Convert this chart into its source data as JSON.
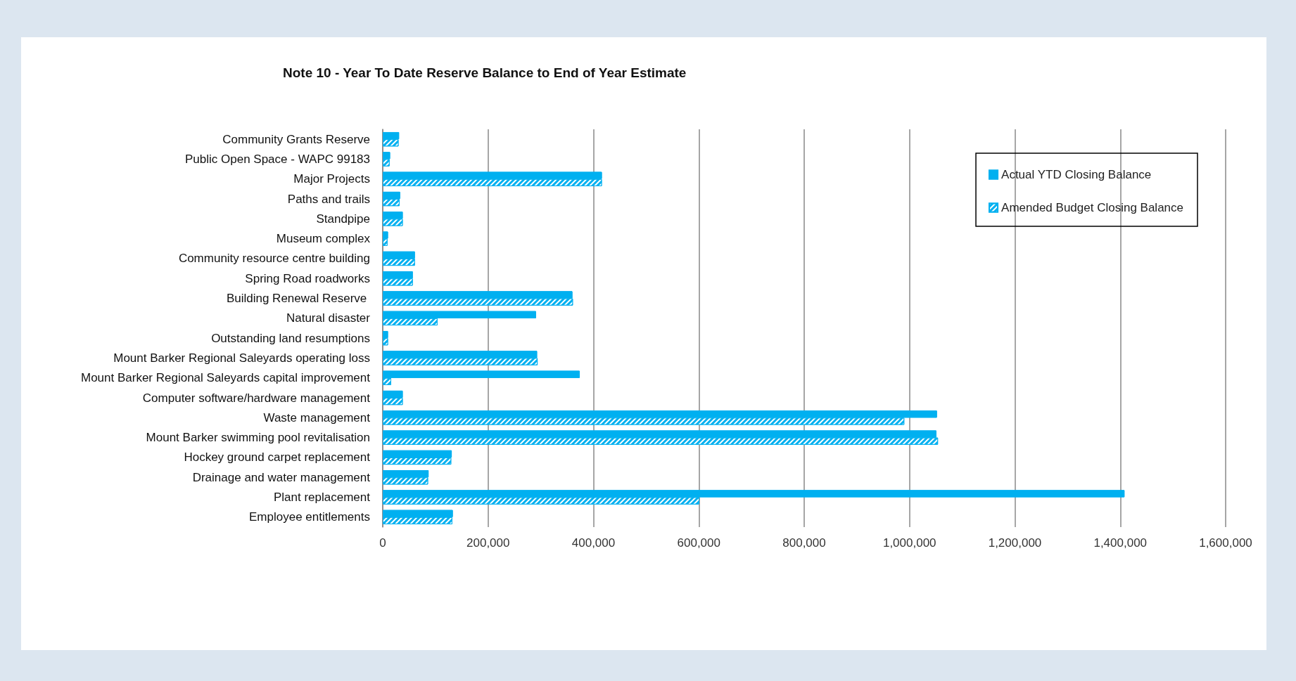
{
  "chart_data": {
    "type": "bar",
    "orientation": "horizontal",
    "title": "Note 10 - Year To Date Reserve Balance to End of Year Estimate",
    "categories": [
      "Community Grants Reserve",
      "Public Open Space - WAPC 99183",
      "Major Projects",
      "Paths and trails",
      "Standpipe",
      "Museum complex",
      "Community resource centre building",
      "Spring Road roadworks",
      "Building Renewal Reserve ",
      "Natural disaster",
      "Outstanding land resumptions",
      "Mount Barker Regional Saleyards operating loss",
      "Mount Barker Regional Saleyards capital improvement",
      "Computer software/hardware management",
      "Waste management",
      "Mount Barker swimming pool revitalisation",
      "Hockey ground carpet replacement",
      "Drainage and water management",
      "Plant replacement",
      "Employee entitlements"
    ],
    "series": [
      {
        "name": "Actual YTD Closing Balance",
        "color": "#00b0f0",
        "values": [
          31000,
          14000,
          416000,
          33000,
          38000,
          10000,
          61000,
          57000,
          360000,
          291000,
          10000,
          293000,
          374000,
          38000,
          1052000,
          1051000,
          131000,
          87000,
          1408000,
          133000
        ]
      },
      {
        "name": "Amended Budget Closing Balance",
        "color": "#00b0f0",
        "values": [
          30000,
          13000,
          416000,
          32000,
          38000,
          9000,
          61000,
          57000,
          361000,
          104000,
          10000,
          294000,
          16000,
          38000,
          990000,
          1054000,
          130000,
          86000,
          601000,
          132000
        ]
      }
    ],
    "xlim": [
      0,
      1600000
    ],
    "xticks": [
      0,
      {
        "value": 200000,
        "label": "200,000"
      },
      {
        "value": 400000,
        "label": "400,000"
      },
      {
        "value": 600000,
        "label": "600,000"
      },
      {
        "value": 800000,
        "label": "800,000"
      },
      {
        "value": 1000000,
        "label": "1,000,000"
      },
      {
        "value": 1200000,
        "label": "1,200,000"
      },
      {
        "value": 1400000,
        "label": "1,400,000"
      },
      {
        "value": 1600000,
        "label": "1,600,000"
      }
    ],
    "grid": "x",
    "legend": "top right"
  }
}
